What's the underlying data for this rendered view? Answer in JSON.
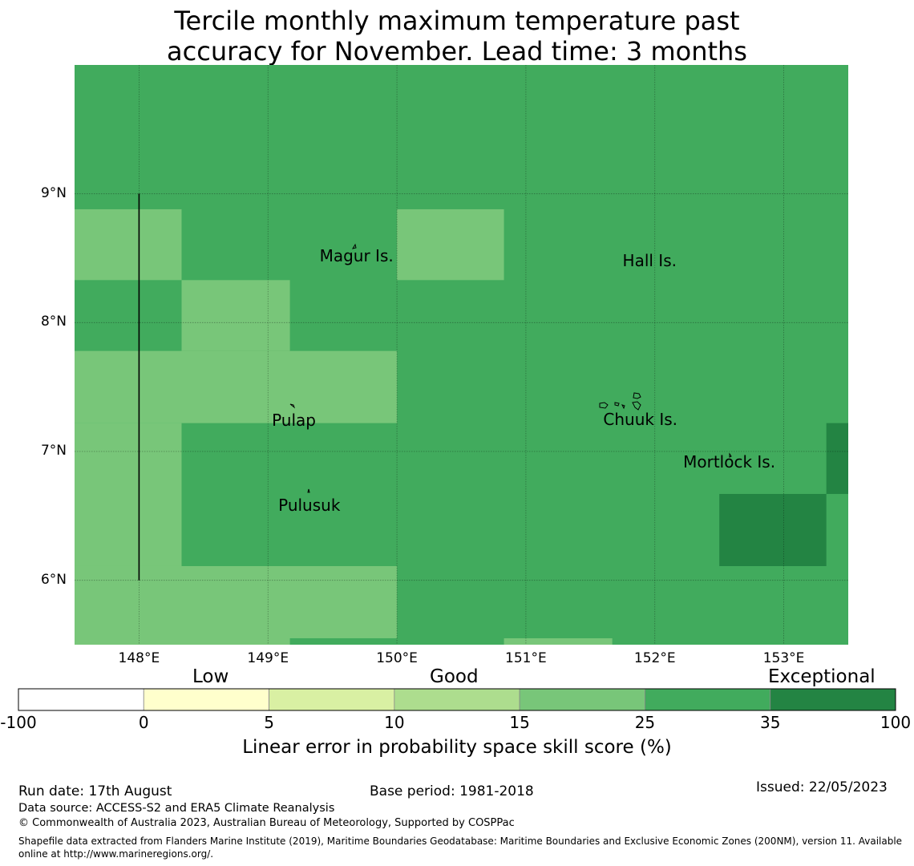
{
  "title": {
    "line1": "Tercile monthly maximum temperature past",
    "line2": "accuracy for November. Lead time: 3 months"
  },
  "map": {
    "lon_range": [
      147.5,
      153.5
    ],
    "lat_range": [
      5.5,
      10.0
    ],
    "lat_ticks": [
      {
        "value": 9,
        "label": "9°N"
      },
      {
        "value": 8,
        "label": "8°N"
      },
      {
        "value": 7,
        "label": "7°N"
      },
      {
        "value": 6,
        "label": "6°N"
      }
    ],
    "lon_ticks": [
      {
        "value": 148,
        "label": "148°E"
      },
      {
        "value": 149,
        "label": "149°E"
      },
      {
        "value": 150,
        "label": "150°E"
      },
      {
        "value": 151,
        "label": "151°E"
      },
      {
        "value": 152,
        "label": "152°E"
      },
      {
        "value": 153,
        "label": "153°E"
      }
    ],
    "background_class": 5,
    "cells": [
      {
        "lon": [
          147.5,
          148.33
        ],
        "lat": [
          8.33,
          8.88
        ],
        "class": 4
      },
      {
        "lon": [
          150.0,
          150.83
        ],
        "lat": [
          8.33,
          8.88
        ],
        "class": 4
      },
      {
        "lon": [
          148.33,
          149.17
        ],
        "lat": [
          7.78,
          8.33
        ],
        "class": 4
      },
      {
        "lon": [
          147.5,
          150.0
        ],
        "lat": [
          7.22,
          7.78
        ],
        "class": 4
      },
      {
        "lon": [
          147.5,
          148.33
        ],
        "lat": [
          6.11,
          7.22
        ],
        "class": 4
      },
      {
        "lon": [
          147.5,
          150.0
        ],
        "lat": [
          5.5,
          6.11
        ],
        "class": 4
      },
      {
        "lon": [
          149.17,
          150.0
        ],
        "lat": [
          5.5,
          5.55
        ],
        "class": 5
      },
      {
        "lon": [
          150.83,
          151.67
        ],
        "lat": [
          5.5,
          5.55
        ],
        "class": 4
      },
      {
        "lon": [
          152.5,
          153.33
        ],
        "lat": [
          6.11,
          6.67
        ],
        "class": 6
      },
      {
        "lon": [
          153.33,
          153.5
        ],
        "lat": [
          6.67,
          7.22
        ],
        "class": 6
      }
    ],
    "boundary_line": {
      "lon": 148.0,
      "lat": [
        6.0,
        9.0
      ]
    },
    "places": [
      {
        "name": "Magur Is.",
        "lon": 149.4,
        "lat": 8.52
      },
      {
        "name": "Hall Is.",
        "lon": 151.75,
        "lat": 8.48
      },
      {
        "name": "Pulap",
        "lon": 149.03,
        "lat": 7.24
      },
      {
        "name": "Chuuk Is.",
        "lon": 151.6,
        "lat": 7.25
      },
      {
        "name": "Mortlock Is.",
        "lon": 152.22,
        "lat": 6.92
      },
      {
        "name": "Pulusuk",
        "lon": 149.08,
        "lat": 6.58
      }
    ]
  },
  "colorbar": {
    "colors": [
      "#ffffff",
      "#ffffcc",
      "#d9f0a3",
      "#addd8e",
      "#78c679",
      "#41ab5d",
      "#238443"
    ],
    "tick_labels": [
      "-100",
      "0",
      "5",
      "10",
      "15",
      "25",
      "35",
      "100"
    ],
    "categories": [
      "Low",
      "Good",
      "Exceptional"
    ],
    "label": "Linear error in probability space skill score (%)"
  },
  "footer": {
    "run_date": "Run date: 17th August",
    "base_period": "Base period: 1981-2018",
    "issued": "Issued: 22/05/2023",
    "data_source": "Data source: ACCESS-S2 and ERA5 Climate Reanalysis",
    "copyright": "© Commonwealth of Australia 2023, Australian Bureau of Meteorology, Supported by COSPPac",
    "shapefile_note": "Shapefile data extracted from Flanders Marine Institute (2019), Maritime Boundaries Geodatabase: Maritime Boundaries and Exclusive Economic Zones (200NM), version 11. Available online at http://www.marineregions.org/."
  }
}
